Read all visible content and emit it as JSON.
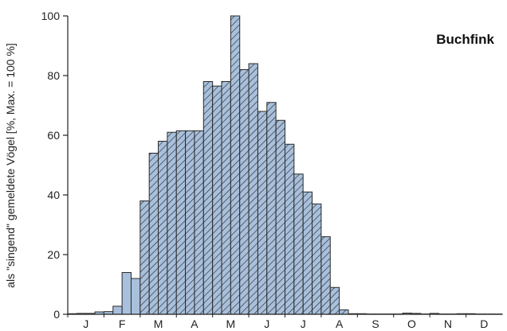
{
  "chart_data": {
    "type": "bar",
    "title": "Buchfink",
    "ylabel": "als \"singend\" gemeldete Vögel [%, Max. = 100 %]",
    "xlabel": "",
    "ylim": [
      0,
      100
    ],
    "yticks": [
      0,
      20,
      40,
      60,
      80,
      100
    ],
    "months": [
      "J",
      "F",
      "M",
      "A",
      "M",
      "J",
      "J",
      "A",
      "S",
      "O",
      "N",
      "D"
    ],
    "pentads_per_month": 4,
    "values": [
      0.2,
      0.3,
      0.3,
      0.8,
      0.9,
      2.7,
      14.0,
      12.0,
      38.0,
      54.0,
      58.0,
      61.0,
      61.5,
      61.5,
      61.5,
      78.0,
      76.5,
      78.0,
      100.0,
      82.0,
      84.0,
      68.0,
      71.0,
      65.0,
      57.0,
      47.0,
      41.0,
      37.0,
      26.0,
      9.0,
      1.5,
      0.2,
      0.2,
      0.1,
      0.1,
      0.1,
      0.1,
      0.4,
      0.3,
      0.1,
      0.3,
      0.1,
      0.1,
      0.2,
      0.2,
      0.1,
      0.1,
      0.1
    ],
    "hatched_from_index": 8,
    "colors": {
      "bar": "#a8c0dc",
      "hatch": "#2a2a2a",
      "outline": "#2a2a2a"
    },
    "legend": "none",
    "grid": false
  }
}
